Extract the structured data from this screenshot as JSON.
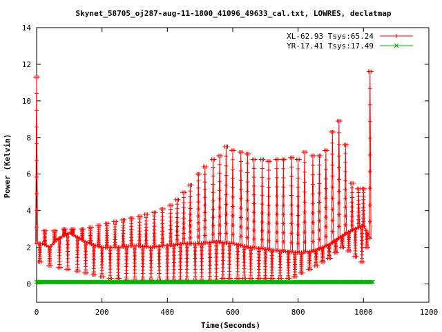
{
  "chart_data": {
    "type": "line",
    "title": "Skynet_58705_oj287-aug-11-1800_41096_49633_cal.txt, LOWRES, declatmap",
    "xlabel": "Time(Seconds)",
    "ylabel": "Power (Kelvin)",
    "xlim": [
      0,
      1200
    ],
    "ylim": [
      -1,
      14
    ],
    "xticks": [
      0,
      200,
      400,
      600,
      800,
      1000,
      1200
    ],
    "yticks": [
      0,
      2,
      4,
      6,
      8,
      10,
      12,
      14
    ],
    "legend_position": "top-right",
    "series": [
      {
        "name": "XL-62.93 Tsys:65.24",
        "color": "#ff0000",
        "marker": "plus",
        "baseline": [
          [
            0,
            2.2
          ],
          [
            20,
            2.2
          ],
          [
            40,
            2.0
          ],
          [
            60,
            2.4
          ],
          [
            80,
            2.6
          ],
          [
            100,
            2.8
          ],
          [
            120,
            2.6
          ],
          [
            150,
            2.3
          ],
          [
            180,
            2.1
          ],
          [
            200,
            2.0
          ],
          [
            250,
            2.0
          ],
          [
            300,
            2.1
          ],
          [
            350,
            2.0
          ],
          [
            400,
            2.1
          ],
          [
            450,
            2.2
          ],
          [
            500,
            2.2
          ],
          [
            550,
            2.3
          ],
          [
            600,
            2.2
          ],
          [
            650,
            2.0
          ],
          [
            700,
            1.9
          ],
          [
            750,
            1.8
          ],
          [
            800,
            1.7
          ],
          [
            850,
            1.8
          ],
          [
            900,
            2.2
          ],
          [
            950,
            2.8
          ],
          [
            1000,
            3.2
          ],
          [
            1020,
            2.5
          ]
        ],
        "peaks": [
          [
            0,
            11.3
          ],
          [
            25,
            2.9
          ],
          [
            55,
            2.9
          ],
          [
            85,
            3.0
          ],
          [
            110,
            3.0
          ],
          [
            140,
            3.0
          ],
          [
            165,
            3.1
          ],
          [
            190,
            3.2
          ],
          [
            215,
            3.3
          ],
          [
            240,
            3.4
          ],
          [
            265,
            3.5
          ],
          [
            290,
            3.6
          ],
          [
            315,
            3.7
          ],
          [
            335,
            3.8
          ],
          [
            360,
            3.9
          ],
          [
            385,
            4.1
          ],
          [
            410,
            4.3
          ],
          [
            430,
            4.6
          ],
          [
            450,
            5.0
          ],
          [
            470,
            5.4
          ],
          [
            495,
            6.0
          ],
          [
            515,
            6.4
          ],
          [
            540,
            6.8
          ],
          [
            560,
            7.0
          ],
          [
            580,
            7.5
          ],
          [
            600,
            7.3
          ],
          [
            625,
            7.2
          ],
          [
            645,
            7.1
          ],
          [
            665,
            6.8
          ],
          [
            690,
            6.8
          ],
          [
            710,
            6.7
          ],
          [
            735,
            6.8
          ],
          [
            755,
            6.8
          ],
          [
            780,
            6.9
          ],
          [
            800,
            6.8
          ],
          [
            820,
            7.2
          ],
          [
            845,
            7.0
          ],
          [
            865,
            7.0
          ],
          [
            885,
            7.3
          ],
          [
            905,
            8.3
          ],
          [
            925,
            8.9
          ],
          [
            945,
            7.6
          ],
          [
            965,
            5.5
          ],
          [
            985,
            5.2
          ],
          [
            1000,
            5.2
          ],
          [
            1020,
            11.6
          ]
        ],
        "troughs": [
          [
            10,
            1.2
          ],
          [
            40,
            1.0
          ],
          [
            70,
            0.9
          ],
          [
            95,
            0.8
          ],
          [
            125,
            0.7
          ],
          [
            150,
            0.6
          ],
          [
            175,
            0.5
          ],
          [
            200,
            0.4
          ],
          [
            225,
            0.3
          ],
          [
            250,
            0.3
          ],
          [
            275,
            0.2
          ],
          [
            300,
            0.2
          ],
          [
            325,
            0.2
          ],
          [
            350,
            0.2
          ],
          [
            375,
            0.2
          ],
          [
            400,
            0.2
          ],
          [
            420,
            0.2
          ],
          [
            440,
            0.2
          ],
          [
            460,
            0.2
          ],
          [
            485,
            0.2
          ],
          [
            505,
            0.2
          ],
          [
            530,
            0.2
          ],
          [
            550,
            0.2
          ],
          [
            570,
            0.3
          ],
          [
            590,
            0.3
          ],
          [
            615,
            0.3
          ],
          [
            635,
            0.3
          ],
          [
            655,
            0.3
          ],
          [
            680,
            0.3
          ],
          [
            700,
            0.3
          ],
          [
            720,
            0.3
          ],
          [
            745,
            0.3
          ],
          [
            770,
            0.3
          ],
          [
            790,
            0.4
          ],
          [
            810,
            0.6
          ],
          [
            835,
            0.8
          ],
          [
            855,
            1.0
          ],
          [
            875,
            1.2
          ],
          [
            895,
            1.4
          ],
          [
            915,
            1.7
          ],
          [
            935,
            2.0
          ],
          [
            955,
            1.8
          ],
          [
            975,
            1.5
          ],
          [
            995,
            1.2
          ],
          [
            1010,
            2.0
          ]
        ]
      },
      {
        "name": "YR-17.41 Tsys:17.49",
        "color": "#00b000",
        "marker": "cross",
        "level": 0.1,
        "x_range": [
          0,
          1030
        ]
      }
    ]
  }
}
